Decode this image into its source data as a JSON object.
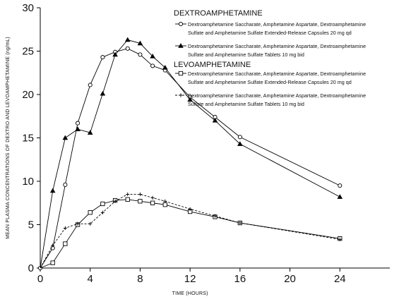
{
  "chart_data": {
    "type": "line",
    "title": "",
    "xlabel": "TIME (HOURS)",
    "ylabel": "MEAN PLASMA CONCENTRATIONS OF DEXTRO AND LEVOAMPHETAMINE (ng/mL)",
    "xlim": [
      0,
      28
    ],
    "ylim": [
      0,
      30
    ],
    "x_ticks": [
      0,
      4,
      8,
      12,
      16,
      20,
      24
    ],
    "y_ticks": [
      0,
      5,
      10,
      15,
      20,
      25,
      30
    ],
    "grid": false,
    "legend_position": "top-right",
    "legend_groups": [
      {
        "heading": "DEXTROAMPHETAMINE",
        "series_indices": [
          0,
          1
        ]
      },
      {
        "heading": "LEVOAMPHETAMINE",
        "series_indices": [
          2,
          3
        ]
      }
    ],
    "series": [
      {
        "name": "Dextroamphetamine Saccharate, Amphetamine Aspartate, Dextroamphetamine Sulfate and Amphetamine Sulfate Extended-Release Capsules 20 mg qd",
        "legend_lines": [
          "Dextroamphetamine Saccharate, Amphetamine Aspartate, Dextroamphetamine",
          "Sulfate and Amphetamine Sulfate Extended-Release Capsules 20 mg qd"
        ],
        "marker": "open-circle",
        "line_style": "solid",
        "color": "#000000",
        "x": [
          0,
          1,
          2,
          3,
          4,
          5,
          6,
          7,
          8,
          9,
          10,
          12,
          14,
          16,
          24
        ],
        "y": [
          0,
          2.3,
          9.6,
          16.7,
          21.1,
          24.3,
          24.9,
          25.3,
          24.6,
          23.3,
          22.8,
          19.7,
          17.4,
          15.1,
          9.5
        ]
      },
      {
        "name": "Dextroamphetamine Saccharate, Amphetamine Aspartate, Dextroamphetamine Sulfate and Amphetamine Sulfate Tablets 10 mg bid",
        "legend_lines": [
          "Dextroamphetamine Saccharate, Amphetamine Aspartate, Dextroamphetamine",
          "Sulfate and Amphetamine Sulfate Tablets 10 mg bid"
        ],
        "marker": "filled-triangle",
        "line_style": "solid",
        "color": "#000000",
        "x": [
          0,
          1,
          2,
          3,
          4,
          5,
          6,
          7,
          8,
          9,
          10,
          12,
          14,
          16,
          24
        ],
        "y": [
          0,
          8.9,
          15.0,
          16.0,
          15.6,
          20.1,
          24.6,
          26.3,
          25.9,
          24.4,
          23.1,
          19.4,
          17.0,
          14.3,
          8.2
        ]
      },
      {
        "name": "Dextroamphetamine Saccharate, Amphetamine Aspartate, Dextroamphetamine Sulfate and Amphetamine Sulfate Extended-Release Capsules 20 mg qd",
        "legend_lines": [
          "Dextroamphetamine Saccharate, Amphetamine Aspartate, Dextroamphetamine",
          "Sulfate and Amphetamine Sulfate Extended-Release Capsules 20 mg qd"
        ],
        "marker": "open-square",
        "line_style": "solid",
        "color": "#000000",
        "x": [
          0,
          1,
          2,
          3,
          4,
          5,
          6,
          7,
          8,
          9,
          10,
          12,
          14,
          16,
          24
        ],
        "y": [
          0,
          0.6,
          2.8,
          5.0,
          6.4,
          7.4,
          7.8,
          7.9,
          7.7,
          7.5,
          7.3,
          6.5,
          5.9,
          5.2,
          3.4
        ]
      },
      {
        "name": "Dextroamphetamine Saccharate, Amphetamine Aspartate, Dextroamphetamine Sulfate and Amphetamine Sulfate Tablets 10 mg bid",
        "legend_lines": [
          "Dextroamphetamine Saccharate, Amphetamine Aspartate, Dextroamphetamine",
          "Sulfate and Amphetamine Sulfate Tablets 10 mg bid"
        ],
        "marker": "plus",
        "line_style": "dashed",
        "color": "#000000",
        "x": [
          0,
          1,
          2,
          3,
          4,
          5,
          6,
          7,
          8,
          9,
          10,
          12,
          14,
          16,
          24
        ],
        "y": [
          0,
          2.6,
          4.6,
          5.1,
          5.1,
          6.4,
          7.7,
          8.5,
          8.5,
          8.1,
          7.7,
          6.8,
          6.0,
          5.2,
          3.3
        ]
      }
    ]
  }
}
